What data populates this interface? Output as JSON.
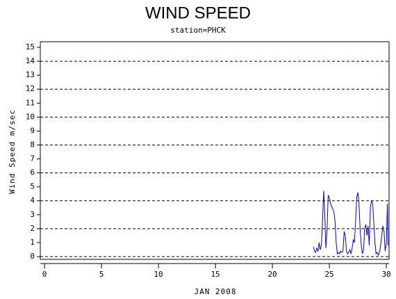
{
  "chart_data": {
    "type": "line",
    "title": "WIND SPEED",
    "subtitle": "station=PHCK",
    "x_label": "JAN 2008",
    "y_label": "Wind Speed m/sec",
    "xlim": [
      -0.37,
      30.24
    ],
    "xticks": [
      0,
      5,
      10,
      15,
      20,
      25,
      30
    ],
    "ylim": [
      -0.2,
      15.4
    ],
    "yticks": [
      0,
      1,
      2,
      3,
      4,
      5,
      6,
      7,
      8,
      9,
      10,
      11,
      12,
      13,
      14,
      15
    ],
    "ygrid": [
      0,
      2,
      4,
      6,
      8,
      10,
      12,
      14
    ],
    "x": [
      23.6,
      23.7,
      23.8,
      23.9,
      24.0,
      24.1,
      24.2,
      24.3,
      24.4,
      24.5,
      24.6,
      24.7,
      24.8,
      24.9,
      25.0,
      25.1,
      25.2,
      25.3,
      25.4,
      25.5,
      25.6,
      25.7,
      25.8,
      25.9,
      26.0,
      26.1,
      26.2,
      26.3,
      26.4,
      26.5,
      26.6,
      26.7,
      26.8,
      26.9,
      27.0,
      27.1,
      27.2,
      27.3,
      27.4,
      27.5,
      27.6,
      27.7,
      27.8,
      27.9,
      28.0,
      28.1,
      28.2,
      28.3,
      28.4,
      28.5,
      28.6,
      28.7,
      28.8,
      28.9,
      29.0,
      29.1,
      29.2,
      29.3,
      29.4,
      29.5,
      29.6,
      29.7,
      29.8,
      29.9,
      30.0,
      30.1,
      30.15
    ],
    "series": [
      {
        "color": "#0000cc",
        "values": [
          0.7,
          0.4,
          0.3,
          0.6,
          0.4,
          1.0,
          0.5,
          0.8,
          2.5,
          4.7,
          3.0,
          0.6,
          2.0,
          4.4,
          4.2,
          3.8,
          3.6,
          3.4,
          3.2,
          2.5,
          1.0,
          0.2,
          0.3,
          0.2,
          0.4,
          0.3,
          0.4,
          1.8,
          1.5,
          0.4,
          0.2,
          0.3,
          0.5,
          0.2,
          0.6,
          1.2,
          1.0,
          2.5,
          4.2,
          4.6,
          3.8,
          2.0,
          0.8,
          0.2,
          0.5,
          2.0,
          2.3,
          1.5,
          2.2,
          0.8,
          3.5,
          4.0,
          3.8,
          2.5,
          1.0,
          0.2,
          0.3,
          0.1,
          0.3,
          0.8,
          1.5,
          2.2,
          1.8,
          0.4,
          1.0,
          3.8,
          0.8
        ]
      }
    ]
  }
}
